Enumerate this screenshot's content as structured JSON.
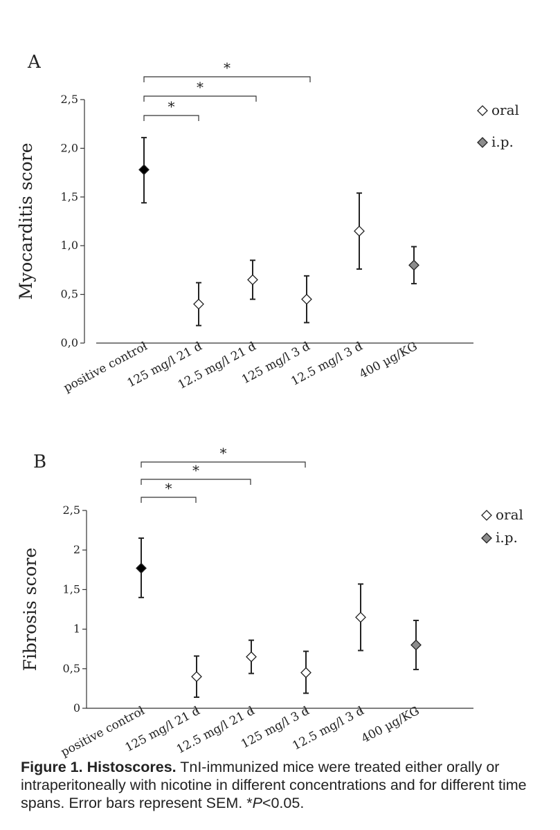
{
  "chart_data": [
    {
      "type": "scatter",
      "panel": "A",
      "ylabel": "Myocarditis score",
      "xlabel": "",
      "ylim": [
        0,
        2.5
      ],
      "yticks": [
        "0,0",
        "0,5",
        "1,0",
        "1,5",
        "2,0",
        "2,5"
      ],
      "categories": [
        "positive control",
        "125 mg/l 21 d",
        "12.5 mg/l 21 d",
        "125 mg/l 3 d",
        "12.5 mg/l 3 d",
        "400 µg/KG"
      ],
      "series": [
        {
          "name": "positive control",
          "marker": "filled",
          "x": [
            "positive control"
          ],
          "values": [
            1.78
          ],
          "err_low": [
            1.44
          ],
          "err_high": [
            2.11
          ]
        },
        {
          "name": "oral",
          "marker": "open",
          "x": [
            "125 mg/l 21 d",
            "12.5 mg/l 21 d",
            "125 mg/l 3 d",
            "12.5 mg/l 3 d"
          ],
          "values": [
            0.4,
            0.65,
            0.45,
            1.15
          ],
          "err_low": [
            0.18,
            0.45,
            0.21,
            0.76
          ],
          "err_high": [
            0.62,
            0.85,
            0.69,
            1.54
          ]
        },
        {
          "name": "i.p.",
          "marker": "gray",
          "x": [
            "400 µg/KG"
          ],
          "values": [
            0.8
          ],
          "err_low": [
            0.61
          ],
          "err_high": [
            0.99
          ]
        }
      ],
      "legend": [
        {
          "label": "oral",
          "marker": "open"
        },
        {
          "label": "i.p.",
          "marker": "gray"
        }
      ],
      "significance": [
        {
          "from": "positive control",
          "to": "125 mg/l 21 d",
          "label": "*"
        },
        {
          "from": "positive control",
          "to": "12.5 mg/l 21 d",
          "label": "*"
        },
        {
          "from": "positive control",
          "to": "125 mg/l 3 d",
          "label": "*"
        }
      ]
    },
    {
      "type": "scatter",
      "panel": "B",
      "ylabel": "Fibrosis score",
      "xlabel": "",
      "ylim": [
        0,
        2.5
      ],
      "yticks": [
        "0",
        "0,5",
        "1",
        "1,5",
        "2",
        "2,5"
      ],
      "categories": [
        "positive control",
        "125 mg/l 21 d",
        "12.5 mg/l 21 d",
        "125 mg/l 3 d",
        "12.5 mg/l 3 d",
        "400 µg/KG"
      ],
      "series": [
        {
          "name": "positive control",
          "marker": "filled",
          "x": [
            "positive control"
          ],
          "values": [
            1.77
          ],
          "err_low": [
            1.4
          ],
          "err_high": [
            2.15
          ]
        },
        {
          "name": "oral",
          "marker": "open",
          "x": [
            "125 mg/l 21 d",
            "12.5 mg/l 21 d",
            "125 mg/l 3 d",
            "12.5 mg/l 3 d"
          ],
          "values": [
            0.4,
            0.65,
            0.45,
            1.15
          ],
          "err_low": [
            0.14,
            0.44,
            0.19,
            0.73
          ],
          "err_high": [
            0.66,
            0.86,
            0.72,
            1.57
          ]
        },
        {
          "name": "i.p.",
          "marker": "gray",
          "x": [
            "400 µg/KG"
          ],
          "values": [
            0.8
          ],
          "err_low": [
            0.49
          ],
          "err_high": [
            1.11
          ]
        }
      ],
      "legend": [
        {
          "label": "oral",
          "marker": "open"
        },
        {
          "label": "i.p.",
          "marker": "gray"
        }
      ],
      "significance": [
        {
          "from": "positive control",
          "to": "125 mg/l 21 d",
          "label": "*"
        },
        {
          "from": "positive control",
          "to": "12.5 mg/l 21 d",
          "label": "*"
        },
        {
          "from": "positive control",
          "to": "125 mg/l 3 d",
          "label": "*"
        }
      ]
    }
  ],
  "caption": {
    "label": "Figure 1. Histoscores.",
    "text": " TnI-immunized mice were treated either orally or intraperitoneally with nicotine in different concentrations and for different time spans. Error bars represent SEM. *",
    "p_symbol": "P",
    "p_threshold": "<0.05."
  },
  "colors": {
    "filled": "#000000",
    "open": "#ffffff",
    "gray": "#8c8c8c",
    "stroke": "#222222"
  }
}
